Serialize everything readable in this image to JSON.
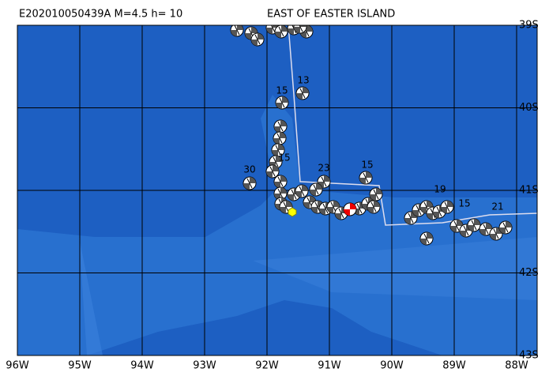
{
  "header": {
    "event_id": "E202010050439A M=4.5 h= 10",
    "region": "EAST OF EASTER ISLAND"
  },
  "map": {
    "lat_labels": [
      "39S",
      "40S",
      "41S",
      "42S",
      "43S"
    ],
    "lon_labels": [
      "96W",
      "95W",
      "94W",
      "93W",
      "92W",
      "91W",
      "90W",
      "89W",
      "88W"
    ],
    "depth_labels": [
      "15",
      "13",
      "30",
      "23",
      "15",
      "15",
      "19",
      "15",
      "21"
    ]
  }
}
